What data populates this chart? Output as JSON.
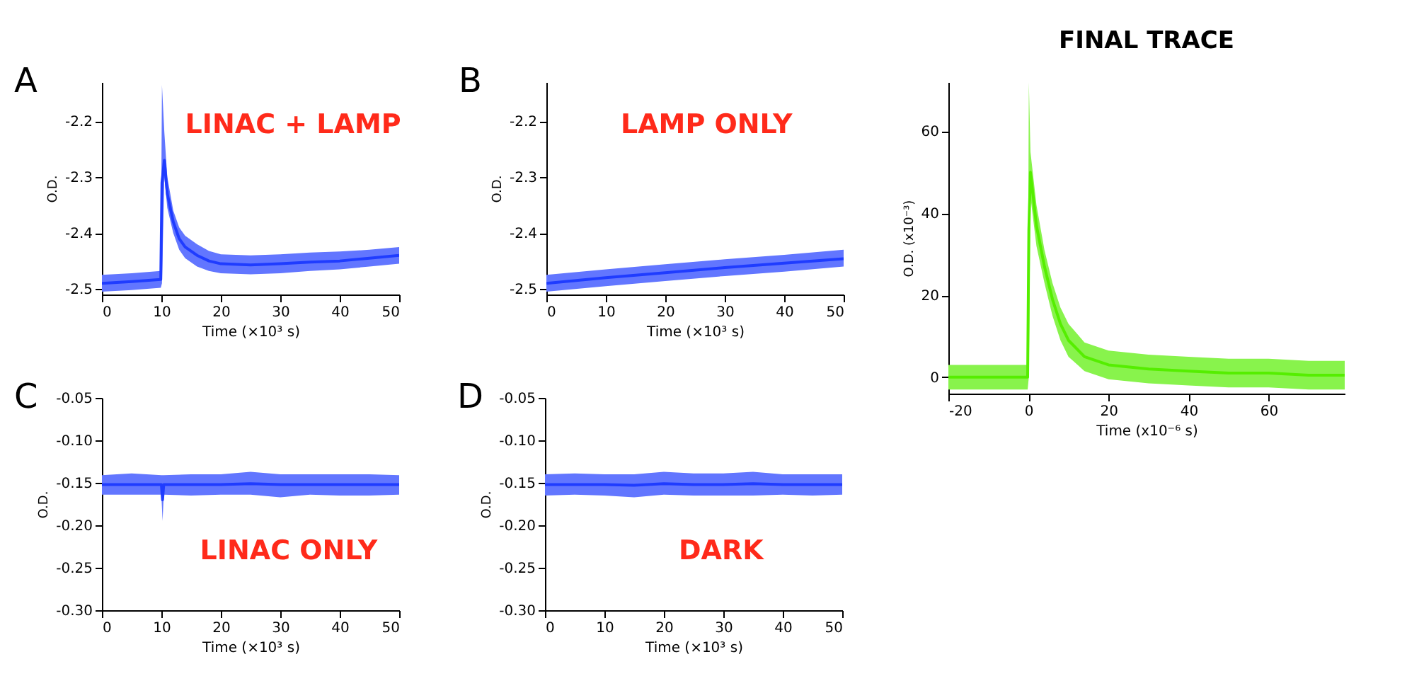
{
  "chart_data": [
    {
      "type": "line",
      "xlabel": "Time (×10³ s)",
      "ylabel": "O.D.",
      "annotations": [
        "A",
        "LINAC + LAMP"
      ],
      "xlim": [
        0,
        50
      ],
      "ylim": [
        -2.51,
        -2.13
      ],
      "xticks": [
        0,
        10,
        20,
        30,
        40,
        50
      ],
      "yticks": [
        -2.5,
        -2.4,
        -2.3,
        -2.2
      ],
      "grid": false,
      "series": [
        {
          "color": "#1f3cff",
          "x": [
            0,
            5,
            9.9,
            10.1,
            10.5,
            11,
            12,
            13,
            14,
            16,
            18,
            20,
            25,
            30,
            35,
            40,
            45,
            50
          ],
          "values": [
            -2.49,
            -2.487,
            -2.483,
            -2.31,
            -2.27,
            -2.33,
            -2.38,
            -2.41,
            -2.425,
            -2.44,
            -2.45,
            -2.455,
            -2.457,
            -2.455,
            -2.452,
            -2.45,
            -2.445,
            -2.44
          ],
          "lower": [
            -2.505,
            -2.502,
            -2.498,
            -2.49,
            -2.3,
            -2.355,
            -2.4,
            -2.43,
            -2.445,
            -2.46,
            -2.468,
            -2.472,
            -2.474,
            -2.472,
            -2.468,
            -2.465,
            -2.46,
            -2.455
          ],
          "upper": [
            -2.475,
            -2.472,
            -2.468,
            -2.135,
            -2.22,
            -2.3,
            -2.36,
            -2.39,
            -2.405,
            -2.42,
            -2.432,
            -2.438,
            -2.44,
            -2.438,
            -2.435,
            -2.433,
            -2.43,
            -2.425
          ]
        }
      ]
    },
    {
      "type": "line",
      "xlabel": "Time (×10³ s)",
      "ylabel": "O.D.",
      "annotations": [
        "B",
        "LAMP ONLY"
      ],
      "xlim": [
        0,
        50
      ],
      "ylim": [
        -2.51,
        -2.13
      ],
      "xticks": [
        0,
        10,
        20,
        30,
        40,
        50
      ],
      "yticks": [
        -2.5,
        -2.4,
        -2.3,
        -2.2
      ],
      "grid": false,
      "series": [
        {
          "color": "#1f3cff",
          "x": [
            0,
            10,
            20,
            30,
            40,
            50
          ],
          "values": [
            -2.49,
            -2.48,
            -2.471,
            -2.462,
            -2.454,
            -2.446
          ],
          "lower": [
            -2.505,
            -2.495,
            -2.486,
            -2.477,
            -2.469,
            -2.46
          ],
          "upper": [
            -2.475,
            -2.465,
            -2.456,
            -2.447,
            -2.439,
            -2.43
          ]
        }
      ]
    },
    {
      "type": "line",
      "xlabel": "Time (×10³ s)",
      "ylabel": "O.D.",
      "annotations": [
        "C",
        "LINAC ONLY"
      ],
      "xlim": [
        0,
        50
      ],
      "ylim": [
        -0.3,
        -0.05
      ],
      "xticks": [
        0,
        10,
        20,
        30,
        40,
        50
      ],
      "yticks": [
        {
          "value": -0.3,
          "label": "-0.30"
        },
        -0.25,
        {
          "value": -0.2,
          "label": "-0.20"
        },
        -0.15,
        {
          "value": -0.1,
          "label": "-0.10"
        },
        -0.05
      ],
      "grid": false,
      "series": [
        {
          "color": "#1f3cff",
          "x": [
            0,
            5,
            10,
            10.2,
            10.4,
            15,
            20,
            25,
            30,
            35,
            40,
            45,
            50
          ],
          "values": [
            -0.152,
            -0.152,
            -0.152,
            -0.17,
            -0.152,
            -0.152,
            -0.152,
            -0.151,
            -0.152,
            -0.152,
            -0.152,
            -0.152,
            -0.152
          ],
          "lower": [
            -0.164,
            -0.164,
            -0.164,
            -0.195,
            -0.164,
            -0.165,
            -0.164,
            -0.164,
            -0.167,
            -0.164,
            -0.165,
            -0.165,
            -0.164
          ],
          "upper": [
            -0.141,
            -0.139,
            -0.141,
            -0.141,
            -0.141,
            -0.14,
            -0.14,
            -0.137,
            -0.14,
            -0.14,
            -0.14,
            -0.14,
            -0.141
          ]
        }
      ]
    },
    {
      "type": "line",
      "xlabel": "Time (×10³ s)",
      "ylabel": "O.D.",
      "annotations": [
        "D",
        "DARK"
      ],
      "xlim": [
        0,
        50
      ],
      "ylim": [
        -0.3,
        -0.05
      ],
      "xticks": [
        0,
        10,
        20,
        30,
        40,
        50
      ],
      "yticks": [
        {
          "value": -0.3,
          "label": "-0.30"
        },
        -0.25,
        {
          "value": -0.2,
          "label": "-0.20"
        },
        -0.15,
        {
          "value": -0.1,
          "label": "-0.10"
        },
        -0.05
      ],
      "grid": false,
      "series": [
        {
          "color": "#1f3cff",
          "x": [
            0,
            5,
            10,
            15,
            20,
            25,
            30,
            35,
            40,
            45,
            50
          ],
          "values": [
            -0.152,
            -0.152,
            -0.152,
            -0.153,
            -0.151,
            -0.152,
            -0.152,
            -0.151,
            -0.152,
            -0.152,
            -0.152
          ],
          "lower": [
            -0.165,
            -0.164,
            -0.165,
            -0.167,
            -0.164,
            -0.165,
            -0.165,
            -0.165,
            -0.164,
            -0.165,
            -0.164
          ],
          "upper": [
            -0.14,
            -0.139,
            -0.14,
            -0.14,
            -0.137,
            -0.139,
            -0.139,
            -0.137,
            -0.14,
            -0.14,
            -0.14
          ]
        }
      ]
    },
    {
      "type": "line",
      "title": "FINAL TRACE",
      "xlabel": "Time (x10⁻⁶ s)",
      "ylabel": "O.D. (x10⁻³)",
      "xlim": [
        -20,
        79
      ],
      "ylim": [
        -4,
        72
      ],
      "xticks": [
        -20,
        0,
        20,
        40,
        60
      ],
      "yticks": [
        0,
        20,
        40,
        60
      ],
      "grid": false,
      "series": [
        {
          "color": "#55ee00",
          "x": [
            -20,
            -10,
            -0.2,
            0.1,
            0.5,
            2,
            4,
            6,
            8,
            10,
            14,
            20,
            30,
            40,
            50,
            60,
            70,
            79
          ],
          "values": [
            0,
            0,
            0,
            36,
            50,
            37,
            27,
            19,
            13,
            9,
            5,
            3,
            2,
            1.5,
            1,
            1,
            0.5,
            0.5
          ],
          "lower": [
            -3,
            -3,
            -3,
            0,
            44,
            32,
            23,
            15,
            9,
            5,
            1.5,
            -0.5,
            -1.5,
            -2,
            -2.5,
            -2.5,
            -3,
            -3
          ],
          "upper": [
            3,
            3,
            3,
            72,
            55,
            42,
            31,
            23,
            17,
            13,
            8.5,
            6.5,
            5.5,
            5,
            4.5,
            4.5,
            4,
            4
          ]
        }
      ]
    }
  ]
}
